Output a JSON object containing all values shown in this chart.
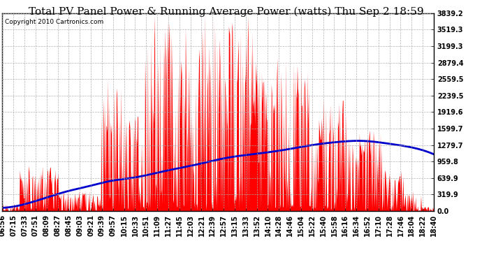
{
  "title": "Total PV Panel Power & Running Average Power (watts) Thu Sep 2 18:59",
  "copyright": "Copyright 2010 Cartronics.com",
  "background_color": "#ffffff",
  "plot_background": "#ffffff",
  "grid_color": "#aaaaaa",
  "bar_color": "#ff0000",
  "line_color": "#0000cc",
  "title_fontsize": 11,
  "tick_fontsize": 7,
  "ytick_labels": [
    "0.0",
    "319.9",
    "639.9",
    "959.8",
    "1279.7",
    "1599.7",
    "1919.6",
    "2239.5",
    "2559.5",
    "2879.4",
    "3199.3",
    "3519.3",
    "3839.2"
  ],
  "ytick_values": [
    0.0,
    319.9,
    639.9,
    959.8,
    1279.7,
    1599.7,
    1919.6,
    2239.5,
    2559.5,
    2879.4,
    3199.3,
    3519.3,
    3839.2
  ],
  "ymax": 3839.2,
  "xtick_labels": [
    "06:56",
    "07:15",
    "07:33",
    "07:51",
    "08:09",
    "08:27",
    "08:45",
    "09:03",
    "09:21",
    "09:39",
    "09:57",
    "10:15",
    "10:33",
    "10:51",
    "11:09",
    "11:27",
    "11:45",
    "12:03",
    "12:21",
    "12:39",
    "12:57",
    "13:15",
    "13:33",
    "13:52",
    "14:10",
    "14:28",
    "14:46",
    "15:04",
    "15:22",
    "15:40",
    "15:58",
    "16:16",
    "16:34",
    "16:52",
    "17:10",
    "17:28",
    "17:46",
    "18:04",
    "18:22",
    "18:40"
  ],
  "n_points": 800,
  "avg_shape_x": [
    0.0,
    0.03,
    0.08,
    0.15,
    0.2,
    0.25,
    0.3,
    0.38,
    0.45,
    0.52,
    0.58,
    0.65,
    0.72,
    0.78,
    0.83,
    0.9,
    0.95,
    1.0
  ],
  "avg_shape_y": [
    60,
    90,
    200,
    380,
    480,
    580,
    640,
    780,
    900,
    1030,
    1100,
    1180,
    1280,
    1340,
    1360,
    1300,
    1230,
    1100
  ]
}
